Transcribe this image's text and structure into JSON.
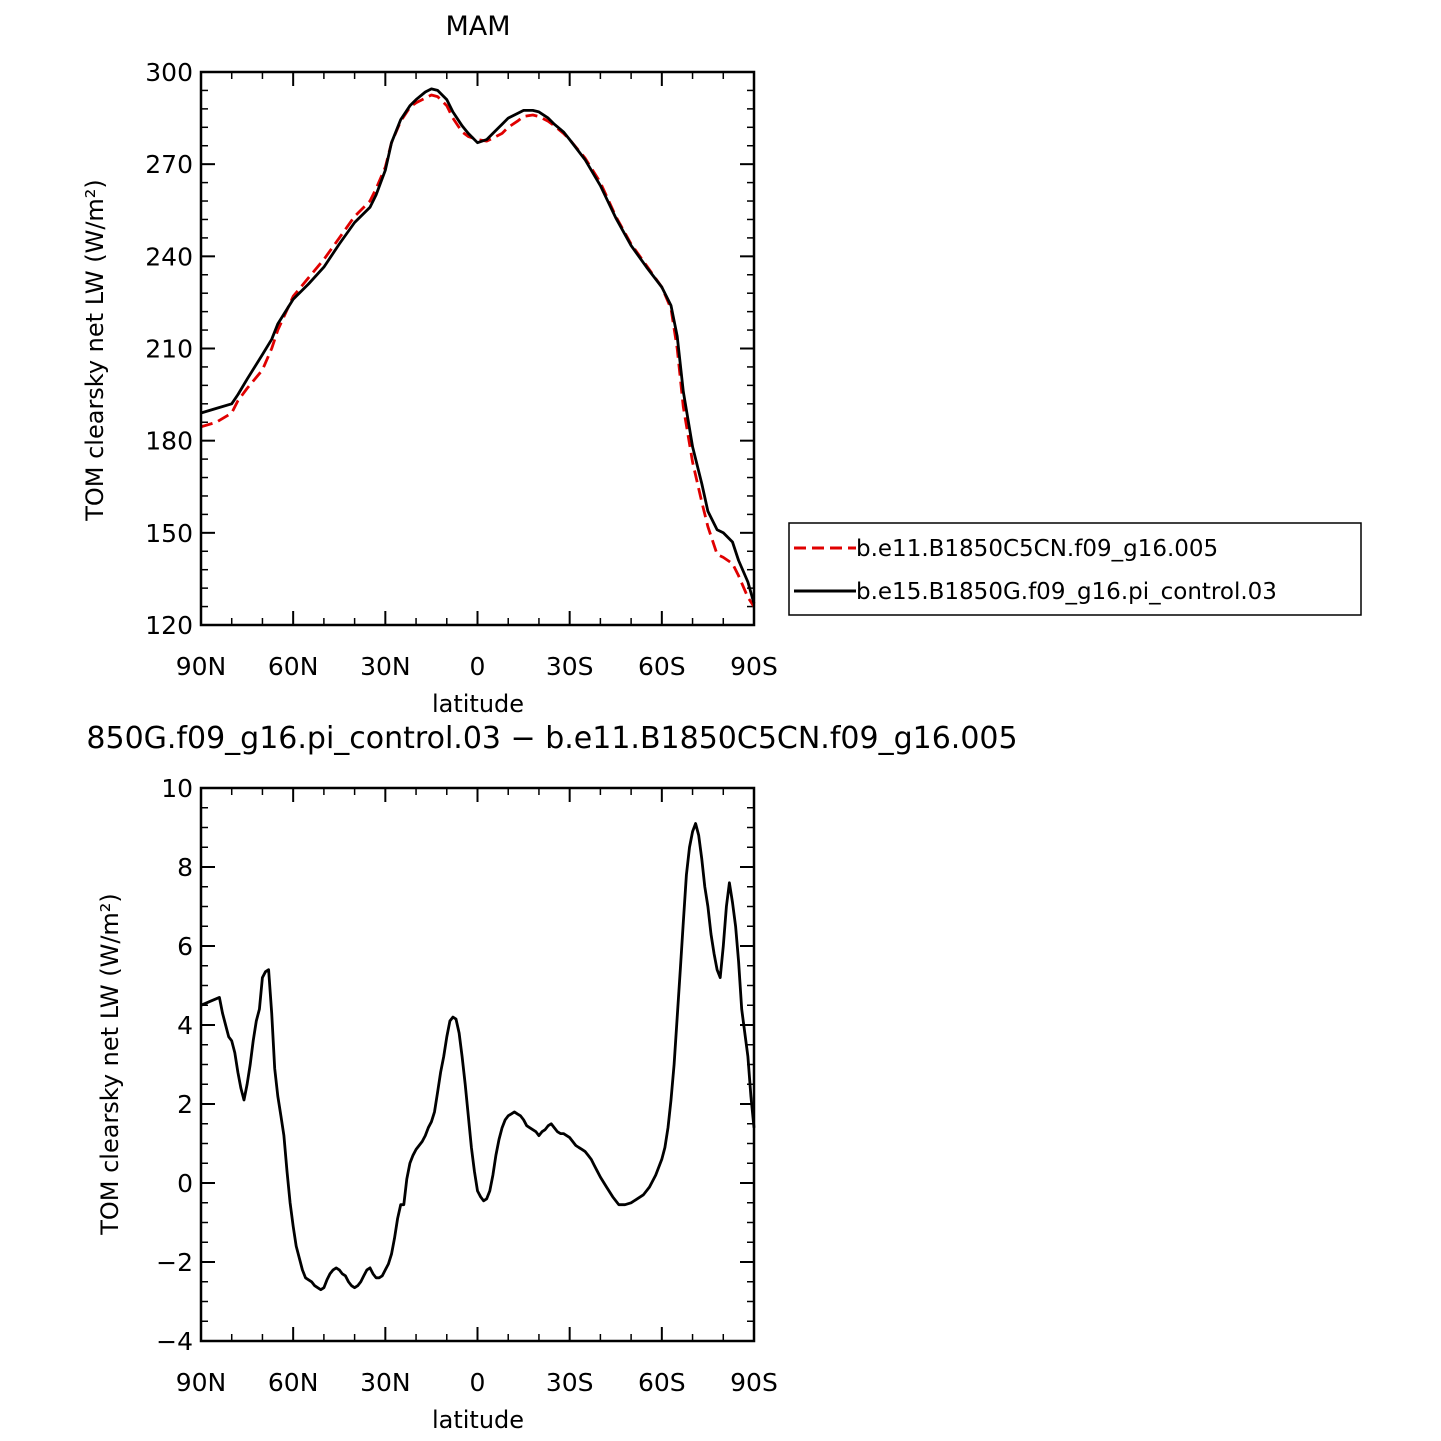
{
  "chart_data": [
    {
      "type": "line",
      "title": "MAM",
      "xlabel": "latitude",
      "ylabel": "TOM clearsky net LW (W/m²)",
      "x_ticks": [
        -90,
        -60,
        -30,
        0,
        30,
        60,
        90
      ],
      "x_tick_labels": [
        "90N",
        "60N",
        "30N",
        "0",
        "30S",
        "60S",
        "90S"
      ],
      "xlim": [
        -90,
        90
      ],
      "ylim": [
        120,
        300
      ],
      "y_ticks": [
        120,
        150,
        180,
        210,
        240,
        270,
        300
      ],
      "y_tick_labels": [
        "120",
        "150",
        "180",
        "210",
        "240",
        "270",
        "300"
      ],
      "legend": {
        "placement": "right"
      },
      "series": [
        {
          "name": "b.e11.B1850C5CN.f09_g16.005",
          "color": "#e00000",
          "style": "dashed",
          "x": [
            -90,
            -85,
            -80,
            -78,
            -75,
            -70,
            -67,
            -65,
            -60,
            -55,
            -50,
            -45,
            -40,
            -35,
            -33,
            -30,
            -28,
            -25,
            -22,
            -20,
            -17,
            -15,
            -13,
            -10,
            -8,
            -5,
            -3,
            0,
            3,
            5,
            8,
            10,
            13,
            15,
            18,
            20,
            23,
            25,
            28,
            30,
            35,
            40,
            45,
            50,
            55,
            60,
            63,
            65,
            67,
            70,
            73,
            75,
            78,
            80,
            83,
            85,
            88,
            90
          ],
          "y": [
            184.5,
            186,
            189,
            193,
            197,
            203,
            210,
            216,
            227,
            233,
            239,
            246,
            253,
            258,
            262,
            269,
            277,
            284,
            288.5,
            290,
            291.5,
            292.5,
            292,
            289,
            285,
            280.5,
            279,
            278,
            277.5,
            278.5,
            280,
            282,
            284,
            285.5,
            286,
            285.5,
            284,
            282.5,
            280,
            278,
            272,
            264,
            253,
            244,
            237,
            230,
            223,
            210,
            191,
            173,
            160,
            152,
            143,
            142,
            140,
            136,
            129,
            126
          ]
        },
        {
          "name": "b.e15.B1850G.f09_g16.pi_control.03",
          "color": "#000000",
          "style": "solid",
          "x": [
            -90,
            -85,
            -80,
            -78,
            -75,
            -70,
            -67,
            -65,
            -60,
            -55,
            -50,
            -45,
            -40,
            -35,
            -33,
            -30,
            -28,
            -25,
            -22,
            -20,
            -17,
            -15,
            -13,
            -10,
            -8,
            -5,
            -3,
            0,
            3,
            5,
            8,
            10,
            13,
            15,
            18,
            20,
            23,
            25,
            28,
            30,
            35,
            40,
            45,
            50,
            55,
            60,
            63,
            65,
            67,
            70,
            73,
            75,
            78,
            80,
            83,
            85,
            88,
            90
          ],
          "y": [
            189,
            190.5,
            192,
            195,
            200,
            208,
            213,
            218,
            226,
            231,
            236.5,
            244,
            251,
            256,
            260,
            268,
            277,
            284.5,
            289,
            291,
            293.5,
            294.5,
            294,
            291,
            287,
            282.5,
            280,
            277,
            278,
            280,
            283,
            285,
            286.5,
            287.5,
            287.5,
            287,
            285,
            283,
            280.5,
            278,
            271.5,
            263,
            252.5,
            243.5,
            236.5,
            230,
            224,
            214,
            196,
            178,
            166,
            157,
            151,
            150,
            147,
            141,
            134,
            127
          ]
        }
      ]
    },
    {
      "type": "line",
      "title": "850G.f09_g16.pi_control.03 − b.e11.B1850C5CN.f09_g16.005",
      "xlabel": "latitude",
      "ylabel": "TOM clearsky net LW (W/m²)",
      "x_ticks": [
        -90,
        -60,
        -30,
        0,
        30,
        60,
        90
      ],
      "x_tick_labels": [
        "90N",
        "60N",
        "30N",
        "0",
        "30S",
        "60S",
        "90S"
      ],
      "xlim": [
        -90,
        90
      ],
      "ylim": [
        -4,
        10
      ],
      "y_ticks": [
        -4,
        -2,
        0,
        2,
        4,
        6,
        8,
        10
      ],
      "y_tick_labels": [
        "−4",
        "−2",
        "0",
        "2",
        "4",
        "6",
        "8",
        "10"
      ],
      "series": [
        {
          "color": "#000000",
          "style": "solid",
          "x": [
            -90,
            -87,
            -84,
            -83,
            -82,
            -81,
            -80,
            -79,
            -78,
            -77,
            -76,
            -75,
            -74,
            -73,
            -72,
            -71,
            -70,
            -69,
            -68,
            -67,
            -66,
            -65,
            -64,
            -63,
            -62,
            -61,
            -60,
            -59,
            -58,
            -57,
            -56,
            -55,
            -54,
            -53,
            -52,
            -51,
            -50,
            -49,
            -48,
            -47,
            -46,
            -45,
            -44,
            -43,
            -42,
            -41,
            -40,
            -39,
            -38,
            -37,
            -36,
            -35,
            -34,
            -33,
            -32,
            -31,
            -30,
            -29,
            -28,
            -27,
            -26,
            -25,
            -24,
            -23,
            -22,
            -21,
            -20,
            -19,
            -18,
            -17,
            -16,
            -15,
            -14,
            -13,
            -12,
            -11,
            -10,
            -9,
            -8,
            -7,
            -6,
            -5,
            -4,
            -3,
            -2,
            -1,
            0,
            1,
            2,
            3,
            4,
            5,
            6,
            7,
            8,
            9,
            10,
            11,
            12,
            13,
            14,
            15,
            16,
            17,
            18,
            19,
            20,
            21,
            22,
            23,
            24,
            25,
            26,
            27,
            28,
            29,
            30,
            31,
            32,
            33,
            34,
            35,
            36,
            37,
            38,
            39,
            40,
            42,
            44,
            46,
            48,
            50,
            52,
            54,
            56,
            58,
            60,
            61,
            62,
            63,
            64,
            65,
            66,
            67,
            68,
            69,
            70,
            71,
            72,
            73,
            74,
            75,
            76,
            77,
            78,
            79,
            80,
            81,
            82,
            83,
            84,
            85,
            86,
            87,
            88,
            89,
            90
          ],
          "y": [
            4.5,
            4.6,
            4.7,
            4.3,
            4.0,
            3.7,
            3.6,
            3.3,
            2.8,
            2.4,
            2.1,
            2.5,
            3.0,
            3.6,
            4.1,
            4.4,
            5.2,
            5.35,
            5.4,
            4.3,
            2.9,
            2.2,
            1.7,
            1.2,
            0.3,
            -0.5,
            -1.1,
            -1.6,
            -1.9,
            -2.2,
            -2.4,
            -2.45,
            -2.5,
            -2.6,
            -2.65,
            -2.7,
            -2.65,
            -2.45,
            -2.3,
            -2.2,
            -2.15,
            -2.2,
            -2.3,
            -2.35,
            -2.5,
            -2.6,
            -2.65,
            -2.6,
            -2.5,
            -2.35,
            -2.2,
            -2.15,
            -2.3,
            -2.4,
            -2.4,
            -2.35,
            -2.2,
            -2.05,
            -1.8,
            -1.4,
            -0.9,
            -0.55,
            -0.55,
            0.1,
            0.5,
            0.7,
            0.85,
            0.95,
            1.05,
            1.2,
            1.4,
            1.55,
            1.8,
            2.3,
            2.8,
            3.2,
            3.7,
            4.1,
            4.2,
            4.15,
            3.8,
            3.2,
            2.5,
            1.7,
            0.9,
            0.3,
            -0.2,
            -0.35,
            -0.45,
            -0.4,
            -0.2,
            0.2,
            0.7,
            1.1,
            1.4,
            1.6,
            1.7,
            1.75,
            1.8,
            1.75,
            1.7,
            1.6,
            1.45,
            1.4,
            1.35,
            1.3,
            1.2,
            1.3,
            1.35,
            1.45,
            1.5,
            1.4,
            1.3,
            1.25,
            1.25,
            1.2,
            1.15,
            1.05,
            0.95,
            0.9,
            0.85,
            0.8,
            0.7,
            0.6,
            0.45,
            0.3,
            0.15,
            -0.1,
            -0.35,
            -0.55,
            -0.55,
            -0.5,
            -0.4,
            -0.3,
            -0.1,
            0.2,
            0.6,
            0.9,
            1.4,
            2.1,
            3.0,
            4.2,
            5.4,
            6.6,
            7.8,
            8.5,
            8.9,
            9.1,
            8.8,
            8.2,
            7.5,
            7.0,
            6.3,
            5.8,
            5.4,
            5.2,
            6.0,
            7.0,
            7.6,
            7.1,
            6.5,
            5.6,
            4.4,
            3.8,
            3.2,
            2.2,
            1.4
          ]
        }
      ]
    }
  ]
}
